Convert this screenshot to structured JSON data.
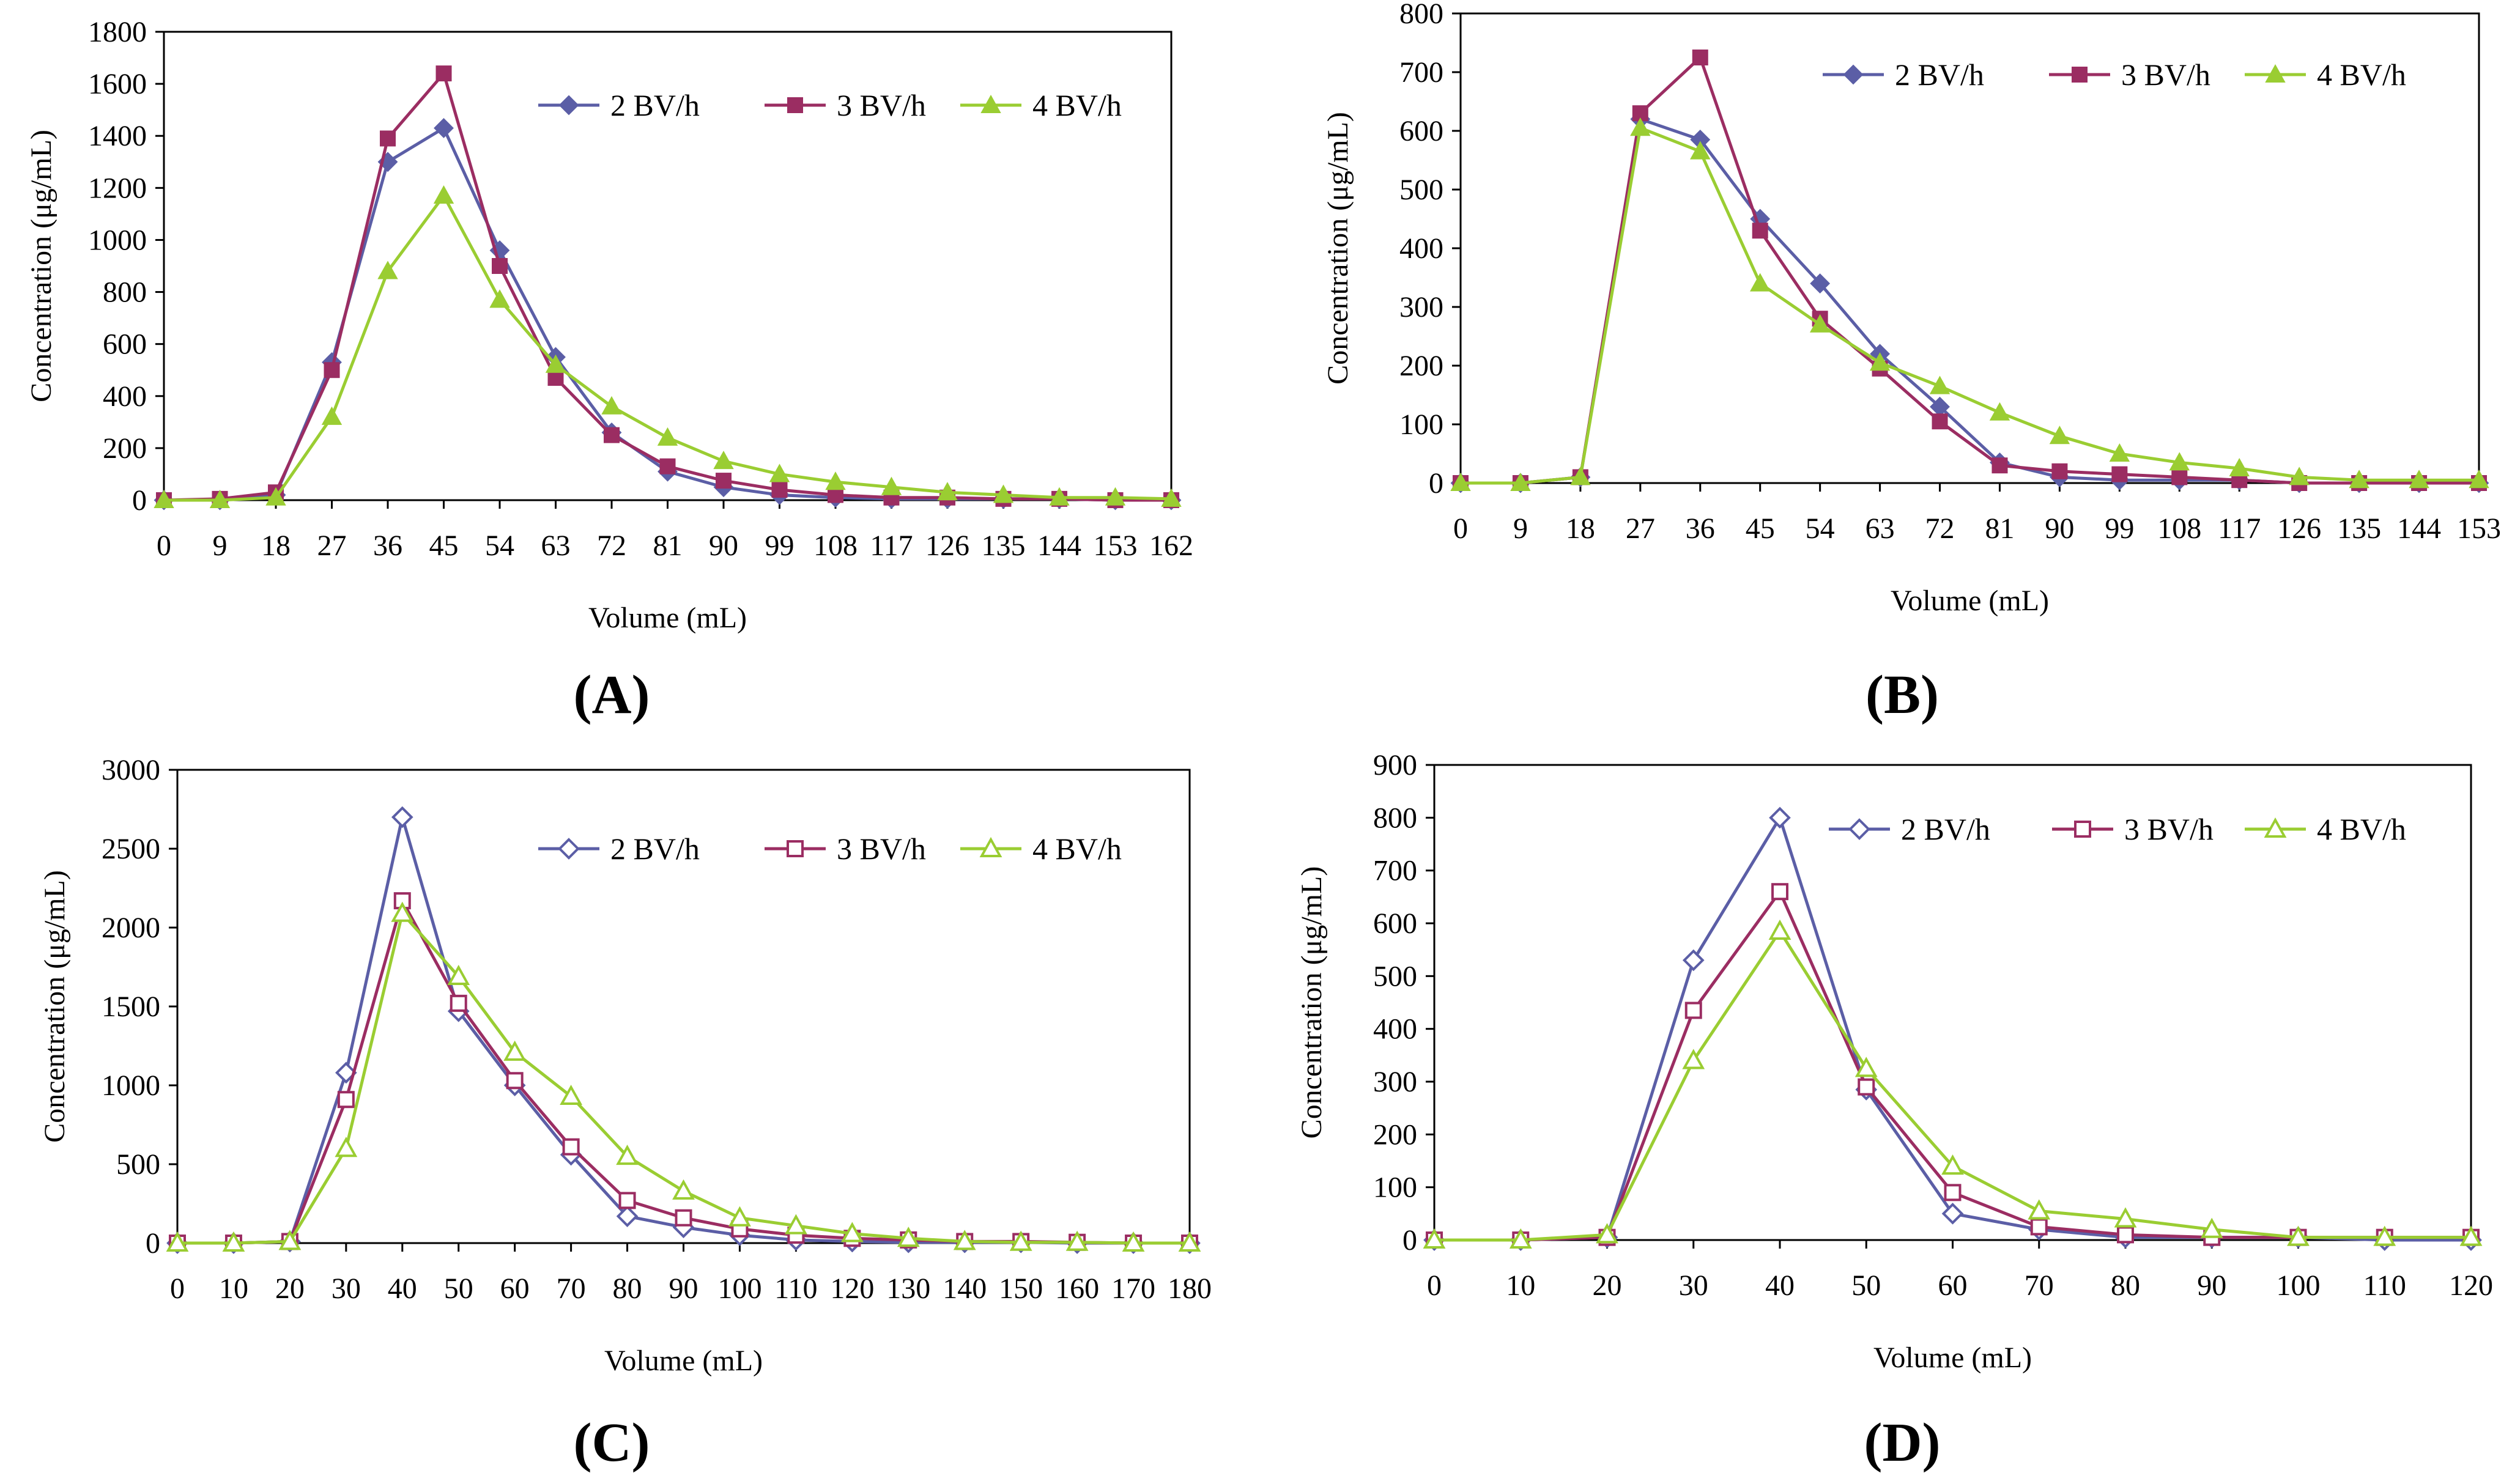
{
  "chart_data": [
    {
      "type": "line",
      "panel_label": "A",
      "marker_style": "filled",
      "xlabel": "Volume (mL)",
      "ylabel": "Concentration (μg/mL)",
      "x": [
        0,
        9,
        18,
        27,
        36,
        45,
        54,
        63,
        72,
        81,
        90,
        99,
        108,
        117,
        126,
        135,
        144,
        153,
        162
      ],
      "xticks": [
        0,
        9,
        18,
        27,
        36,
        45,
        54,
        63,
        72,
        81,
        90,
        99,
        108,
        117,
        126,
        135,
        144,
        153,
        162
      ],
      "xlim": [
        0,
        162
      ],
      "ylim": [
        0,
        1800
      ],
      "yticks": [
        0,
        200,
        400,
        600,
        800,
        1000,
        1200,
        1400,
        1600,
        1800
      ],
      "legend_position": "top-right",
      "series": [
        {
          "name": "2 BV/h",
          "color": "#5b5ea6",
          "marker": "diamond",
          "values": [
            0,
            0,
            20,
            530,
            1300,
            1430,
            960,
            550,
            260,
            110,
            50,
            20,
            10,
            5,
            5,
            5,
            5,
            0,
            0
          ]
        },
        {
          "name": "3 BV/h",
          "color": "#9b2d62",
          "marker": "square",
          "values": [
            0,
            5,
            30,
            500,
            1390,
            1640,
            900,
            470,
            250,
            130,
            75,
            40,
            20,
            10,
            10,
            5,
            5,
            0,
            0
          ]
        },
        {
          "name": "4 BV/h",
          "color": "#9acd32",
          "marker": "triangle",
          "values": [
            0,
            0,
            10,
            320,
            880,
            1170,
            770,
            520,
            360,
            240,
            150,
            100,
            70,
            50,
            30,
            20,
            10,
            10,
            5
          ]
        }
      ]
    },
    {
      "type": "line",
      "panel_label": "B",
      "marker_style": "filled",
      "xlabel": "Volume (mL)",
      "ylabel": "Concentration (μg/mL)",
      "x": [
        0,
        9,
        18,
        27,
        36,
        45,
        54,
        63,
        72,
        81,
        90,
        99,
        108,
        117,
        126,
        135,
        144,
        153
      ],
      "xticks": [
        0,
        9,
        18,
        27,
        36,
        45,
        54,
        63,
        72,
        81,
        90,
        99,
        108,
        117,
        126,
        135,
        144,
        153
      ],
      "xlim": [
        0,
        153
      ],
      "ylim": [
        0,
        800
      ],
      "yticks": [
        0,
        100,
        200,
        300,
        400,
        500,
        600,
        700,
        800
      ],
      "legend_position": "top-right",
      "series": [
        {
          "name": "2 BV/h",
          "color": "#5b5ea6",
          "marker": "diamond",
          "values": [
            0,
            0,
            10,
            620,
            585,
            450,
            340,
            220,
            130,
            35,
            10,
            5,
            5,
            5,
            0,
            0,
            0,
            0
          ]
        },
        {
          "name": "3 BV/h",
          "color": "#9b2d62",
          "marker": "square",
          "values": [
            0,
            0,
            10,
            630,
            725,
            430,
            280,
            195,
            105,
            30,
            20,
            15,
            10,
            5,
            0,
            0,
            0,
            0
          ]
        },
        {
          "name": "4 BV/h",
          "color": "#9acd32",
          "marker": "triangle",
          "values": [
            0,
            0,
            10,
            605,
            565,
            340,
            270,
            205,
            165,
            120,
            80,
            50,
            35,
            25,
            10,
            5,
            5,
            5
          ]
        }
      ]
    },
    {
      "type": "line",
      "panel_label": "C",
      "marker_style": "hollow",
      "xlabel": "Volume (mL)",
      "ylabel": "Concentration (μg/mL)",
      "x": [
        0,
        10,
        20,
        30,
        40,
        50,
        60,
        70,
        80,
        90,
        100,
        110,
        120,
        130,
        140,
        150,
        160,
        170,
        180
      ],
      "xticks": [
        0,
        10,
        20,
        30,
        40,
        50,
        60,
        70,
        80,
        90,
        100,
        110,
        120,
        130,
        140,
        150,
        160,
        170,
        180
      ],
      "xlim": [
        0,
        180
      ],
      "ylim": [
        0,
        3000
      ],
      "yticks": [
        0,
        500,
        1000,
        1500,
        2000,
        2500,
        3000
      ],
      "legend_position": "top-right",
      "series": [
        {
          "name": "2 BV/h",
          "color": "#5b5ea6",
          "marker": "diamond",
          "values": [
            0,
            0,
            10,
            1080,
            2700,
            1470,
            1000,
            560,
            170,
            100,
            50,
            20,
            10,
            5,
            5,
            5,
            0,
            0,
            0
          ]
        },
        {
          "name": "3 BV/h",
          "color": "#9b2d62",
          "marker": "square",
          "values": [
            0,
            0,
            10,
            910,
            2170,
            1520,
            1030,
            610,
            270,
            160,
            90,
            50,
            30,
            20,
            10,
            10,
            5,
            0,
            0
          ]
        },
        {
          "name": "4 BV/h",
          "color": "#9acd32",
          "marker": "triangle",
          "values": [
            0,
            0,
            10,
            600,
            2090,
            1690,
            1210,
            930,
            550,
            330,
            160,
            110,
            60,
            30,
            10,
            5,
            5,
            0,
            0
          ]
        }
      ]
    },
    {
      "type": "line",
      "panel_label": "D",
      "marker_style": "hollow",
      "xlabel": "Volume (mL)",
      "ylabel": "Concentration (μg/mL)",
      "x": [
        0,
        10,
        20,
        30,
        40,
        50,
        60,
        70,
        80,
        90,
        100,
        110,
        120
      ],
      "xticks": [
        0,
        10,
        20,
        30,
        40,
        50,
        60,
        70,
        80,
        90,
        100,
        110,
        120
      ],
      "xlim": [
        0,
        120
      ],
      "ylim": [
        0,
        900
      ],
      "yticks": [
        0,
        100,
        200,
        300,
        400,
        500,
        600,
        700,
        800,
        900
      ],
      "legend_position": "top-right",
      "series": [
        {
          "name": "2 BV/h",
          "color": "#5b5ea6",
          "marker": "diamond",
          "values": [
            0,
            0,
            5,
            530,
            800,
            285,
            50,
            20,
            5,
            5,
            5,
            0,
            0
          ]
        },
        {
          "name": "3 BV/h",
          "color": "#9b2d62",
          "marker": "square",
          "values": [
            0,
            0,
            5,
            435,
            660,
            290,
            90,
            25,
            10,
            5,
            5,
            5,
            5
          ]
        },
        {
          "name": "4 BV/h",
          "color": "#9acd32",
          "marker": "triangle",
          "values": [
            0,
            0,
            10,
            340,
            585,
            325,
            140,
            55,
            40,
            20,
            5,
            5,
            5
          ]
        }
      ]
    }
  ],
  "captions": [
    "(A)",
    "(B)",
    "(C)",
    "(D)"
  ]
}
